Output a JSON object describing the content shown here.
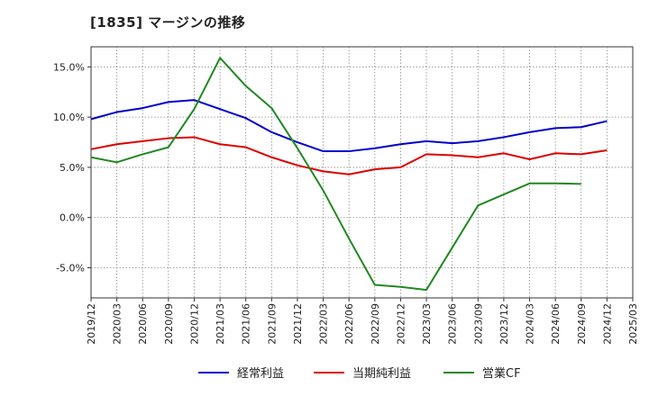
{
  "chart_data": {
    "title": "[1835]  マージンの推移",
    "type": "line",
    "x": [
      "2019/12",
      "2020/03",
      "2020/06",
      "2020/09",
      "2020/12",
      "2021/03",
      "2021/06",
      "2021/09",
      "2021/12",
      "2022/03",
      "2022/06",
      "2022/09",
      "2022/12",
      "2023/03",
      "2023/06",
      "2023/09",
      "2023/12",
      "2024/03",
      "2024/06",
      "2024/09",
      "2024/12",
      "2025/03"
    ],
    "x_tick_labels": [
      "2019/12",
      "2020/03",
      "2020/06",
      "2020/09",
      "2020/12",
      "2021/03",
      "2021/06",
      "2021/09",
      "2021/12",
      "2022/03",
      "2022/06",
      "2022/09",
      "2022/12",
      "2023/03",
      "2023/06",
      "2023/09",
      "2023/12",
      "2024/03",
      "2024/06",
      "2024/09",
      "2024/12",
      "2025/03"
    ],
    "y_ticks": [
      15.0,
      10.0,
      5.0,
      0.0,
      -5.0
    ],
    "y_tick_labels": [
      "15.0%",
      "10.0%",
      "5.0%",
      "0.0%",
      "-5.0%"
    ],
    "ylim": [
      -8.0,
      17.0
    ],
    "grid": true,
    "legend_position": "bottom",
    "series": [
      {
        "name": "経常利益",
        "color": "#0000cc",
        "values": [
          9.8,
          10.5,
          10.9,
          11.5,
          11.7,
          10.8,
          9.9,
          8.5,
          7.5,
          6.6,
          6.6,
          6.9,
          7.3,
          7.6,
          7.4,
          7.6,
          8.0,
          8.5,
          8.9,
          9.0,
          9.6,
          null
        ]
      },
      {
        "name": "当期純利益",
        "color": "#dd0000",
        "values": [
          6.8,
          7.3,
          7.6,
          7.9,
          8.0,
          7.3,
          7.0,
          6.0,
          5.2,
          4.6,
          4.3,
          4.8,
          5.0,
          6.3,
          6.2,
          6.0,
          6.4,
          5.8,
          6.4,
          6.3,
          6.7,
          null
        ]
      },
      {
        "name": "営業CF",
        "color": "#228822",
        "values": [
          6.0,
          5.5,
          6.3,
          7.0,
          10.8,
          15.9,
          13.1,
          10.9,
          6.9,
          2.7,
          -2.1,
          -6.7,
          -6.9,
          -7.2,
          -3.0,
          1.2,
          2.3,
          3.4,
          3.4,
          3.35,
          null,
          null
        ]
      }
    ]
  }
}
